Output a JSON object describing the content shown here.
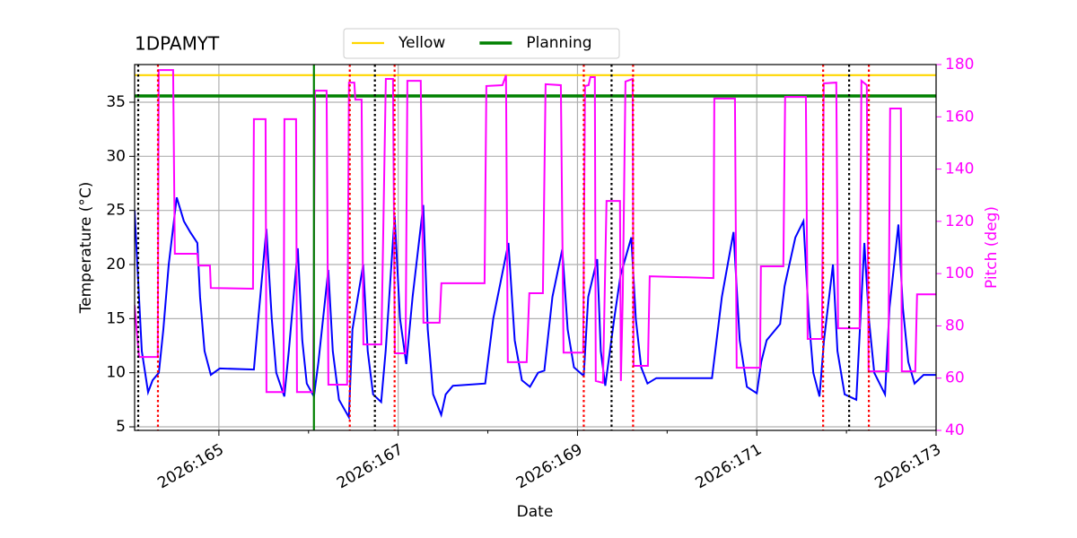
{
  "chart_data": {
    "type": "line",
    "title": "1DPAMYT",
    "xlabel": "Date",
    "ylabel": "Temperature (°C)",
    "y2label": "Pitch (deg)",
    "xlim": [
      164.06,
      173.0
    ],
    "xticks": [
      {
        "value": 165,
        "label": "2026:165"
      },
      {
        "value": 167,
        "label": "2026:167"
      },
      {
        "value": 169,
        "label": "2026:169"
      },
      {
        "value": 171,
        "label": "2026:171"
      },
      {
        "value": 173,
        "label": "2026:173"
      }
    ],
    "xminorticks": [
      166,
      168,
      170,
      172
    ],
    "ylim": [
      4.67,
      38.48
    ],
    "yticks": [
      5,
      10,
      15,
      20,
      25,
      30,
      35
    ],
    "y2lim": [
      40,
      180
    ],
    "y2ticks": [
      40,
      60,
      80,
      100,
      120,
      140,
      160,
      180
    ],
    "y2color": "#ff00ff",
    "grid": true,
    "legend": "top",
    "hlines": [
      {
        "name": "Yellow",
        "value": 37.5,
        "color": "#ffd700"
      },
      {
        "name": "Planning",
        "value": 35.58,
        "color": "#008000"
      }
    ],
    "vlines": [
      {
        "x": 164.1,
        "color": "#000000",
        "style": "dotted"
      },
      {
        "x": 166.74,
        "color": "#000000",
        "style": "dotted"
      },
      {
        "x": 169.38,
        "color": "#000000",
        "style": "dotted"
      },
      {
        "x": 172.03,
        "color": "#000000",
        "style": "dotted"
      },
      {
        "x": 164.32,
        "color": "#ff0000",
        "style": "dotted"
      },
      {
        "x": 166.46,
        "color": "#ff0000",
        "style": "dotted"
      },
      {
        "x": 166.96,
        "color": "#ff0000",
        "style": "dotted"
      },
      {
        "x": 169.07,
        "color": "#ff0000",
        "style": "dotted"
      },
      {
        "x": 169.62,
        "color": "#ff0000",
        "style": "dotted"
      },
      {
        "x": 171.74,
        "color": "#ff0000",
        "style": "dotted"
      },
      {
        "x": 172.25,
        "color": "#ff0000",
        "style": "dotted"
      },
      {
        "x": 166.06,
        "color": "#008000",
        "style": "solid"
      }
    ],
    "series": [
      {
        "color": "#0000ff",
        "axis": "y",
        "x": [
          164.06,
          164.09,
          164.14,
          164.21,
          164.26,
          164.33,
          164.38,
          164.44,
          164.53,
          164.61,
          164.68,
          164.76,
          164.79,
          164.84,
          164.91,
          165.01,
          165.39,
          165.44,
          165.53,
          165.59,
          165.64,
          165.73,
          165.78,
          165.88,
          165.93,
          165.98,
          166.06,
          166.11,
          166.22,
          166.27,
          166.34,
          166.45,
          166.49,
          166.61,
          166.66,
          166.72,
          166.81,
          166.86,
          166.96,
          167.02,
          167.09,
          167.16,
          167.28,
          167.33,
          167.39,
          167.48,
          167.53,
          167.61,
          167.97,
          168.06,
          168.23,
          168.3,
          168.38,
          168.47,
          168.56,
          168.63,
          168.72,
          168.83,
          168.89,
          168.96,
          169.07,
          169.12,
          169.22,
          169.26,
          169.31,
          169.41,
          169.48,
          169.6,
          169.65,
          169.71,
          169.78,
          169.88,
          170.5,
          170.61,
          170.74,
          170.81,
          170.89,
          171.0,
          171.05,
          171.11,
          171.26,
          171.31,
          171.43,
          171.52,
          171.58,
          171.63,
          171.7,
          171.75,
          171.85,
          171.9,
          171.98,
          172.11,
          172.15,
          172.2,
          172.25,
          172.31,
          172.43,
          172.48,
          172.58,
          172.63,
          172.69,
          172.76,
          172.86,
          173.0
        ],
        "values": [
          25,
          20,
          12,
          8.2,
          9.3,
          10,
          14,
          20,
          26.2,
          24,
          23,
          22,
          17,
          12,
          9.8,
          10.4,
          10.3,
          15,
          23.3,
          15,
          10,
          7.8,
          12,
          21.5,
          13,
          9,
          7.8,
          11,
          19.5,
          12,
          7.5,
          5.9,
          14,
          20,
          12,
          8,
          7.3,
          12,
          24.5,
          15,
          10.8,
          17,
          25.5,
          14,
          8,
          6.1,
          8,
          8.8,
          9,
          15,
          22,
          13,
          9.3,
          8.7,
          10,
          10.2,
          17,
          21.4,
          14,
          10.5,
          9.7,
          17,
          20.5,
          12,
          8.8,
          15,
          19,
          22.5,
          15,
          10.5,
          9,
          9.5,
          9.5,
          17,
          23,
          13,
          8.7,
          8.1,
          11,
          13,
          14.5,
          18,
          22.5,
          24,
          15,
          10,
          7.8,
          13,
          20,
          12,
          8,
          7.5,
          14,
          22,
          15,
          10,
          8,
          16,
          23.7,
          16,
          11,
          9,
          9.8,
          9.8
        ]
      },
      {
        "color": "#ff00ff",
        "axis": "y2",
        "x": [
          164.059,
          164.109,
          164.318,
          164.328,
          164.489,
          164.509,
          164.76,
          164.77,
          164.9,
          164.91,
          165.38,
          165.39,
          165.521,
          165.531,
          165.721,
          165.731,
          165.861,
          165.871,
          166.051,
          166.071,
          166.201,
          166.221,
          166.431,
          166.451,
          166.511,
          166.522,
          166.592,
          166.612,
          166.812,
          166.862,
          166.942,
          166.962,
          167.082,
          167.102,
          167.252,
          167.282,
          167.462,
          167.482,
          167.963,
          167.983,
          168.163,
          168.203,
          168.223,
          168.433,
          168.463,
          168.614,
          168.644,
          168.814,
          168.844,
          169.064,
          169.084,
          169.124,
          169.144,
          169.194,
          169.204,
          169.284,
          169.324,
          169.474,
          169.484,
          169.505,
          169.535,
          169.615,
          169.625,
          169.785,
          169.805,
          170.516,
          170.526,
          170.756,
          170.776,
          171.036,
          171.046,
          171.296,
          171.316,
          171.547,
          171.567,
          171.727,
          171.747,
          171.887,
          171.907,
          172.147,
          172.167,
          172.227,
          172.247,
          172.467,
          172.487,
          172.608,
          172.618,
          172.768,
          172.788,
          173.0
        ],
        "values": [
          88,
          68.1,
          68.1,
          177.9,
          177.9,
          107.6,
          107.6,
          103.1,
          103.1,
          94.5,
          94.2,
          159.1,
          159.1,
          54.7,
          54.7,
          159.1,
          159.1,
          54.7,
          54.7,
          170,
          170,
          57.5,
          57.5,
          173.1,
          173.1,
          166.6,
          166.6,
          72.9,
          72.9,
          174.5,
          174.5,
          69.5,
          69.5,
          173.8,
          173.8,
          81.2,
          81.2,
          96.3,
          96.3,
          171.8,
          172.1,
          175.9,
          66.1,
          66.1,
          92.5,
          92.5,
          172.5,
          172.1,
          69.8,
          69.8,
          171.8,
          172.1,
          175.2,
          175.2,
          58.9,
          58.2,
          127.8,
          127.8,
          58.9,
          91.5,
          173.5,
          174.5,
          64.7,
          64.7,
          99,
          98.3,
          167,
          167,
          64,
          64,
          102.8,
          102.8,
          167.6,
          167.6,
          75,
          75,
          172.8,
          173.1,
          79.1,
          79.1,
          173.8,
          172.1,
          62.6,
          62.6,
          163.2,
          163.2,
          62.6,
          62.6,
          92.1,
          92.1
        ]
      }
    ]
  }
}
